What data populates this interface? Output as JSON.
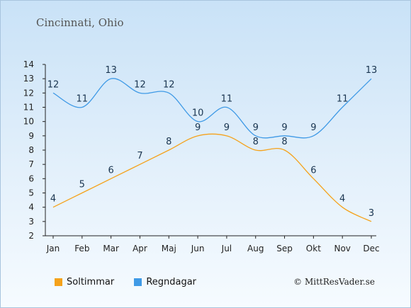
{
  "title": "Cincinnati, Ohio",
  "copyright": "© MittResVader.se",
  "colors": {
    "sun": "#f5a21b",
    "rain": "#3f9ae6"
  },
  "chart_data": {
    "type": "line",
    "categories": [
      "Jan",
      "Feb",
      "Mar",
      "Apr",
      "Maj",
      "Jun",
      "Jul",
      "Aug",
      "Sep",
      "Okt",
      "Nov",
      "Dec"
    ],
    "series": [
      {
        "name": "Soltimmar",
        "values": [
          4,
          5,
          6,
          7,
          8,
          9,
          9,
          8,
          8,
          6,
          4,
          3
        ]
      },
      {
        "name": "Regndagar",
        "values": [
          12,
          11,
          13,
          12,
          12,
          10,
          11,
          9,
          9,
          9,
          11,
          13
        ]
      }
    ],
    "ylim": [
      2,
      14
    ],
    "yticks": [
      2,
      3,
      4,
      5,
      6,
      7,
      8,
      9,
      10,
      11,
      12,
      13,
      14
    ],
    "grid": false,
    "legend": "bottom-left"
  }
}
